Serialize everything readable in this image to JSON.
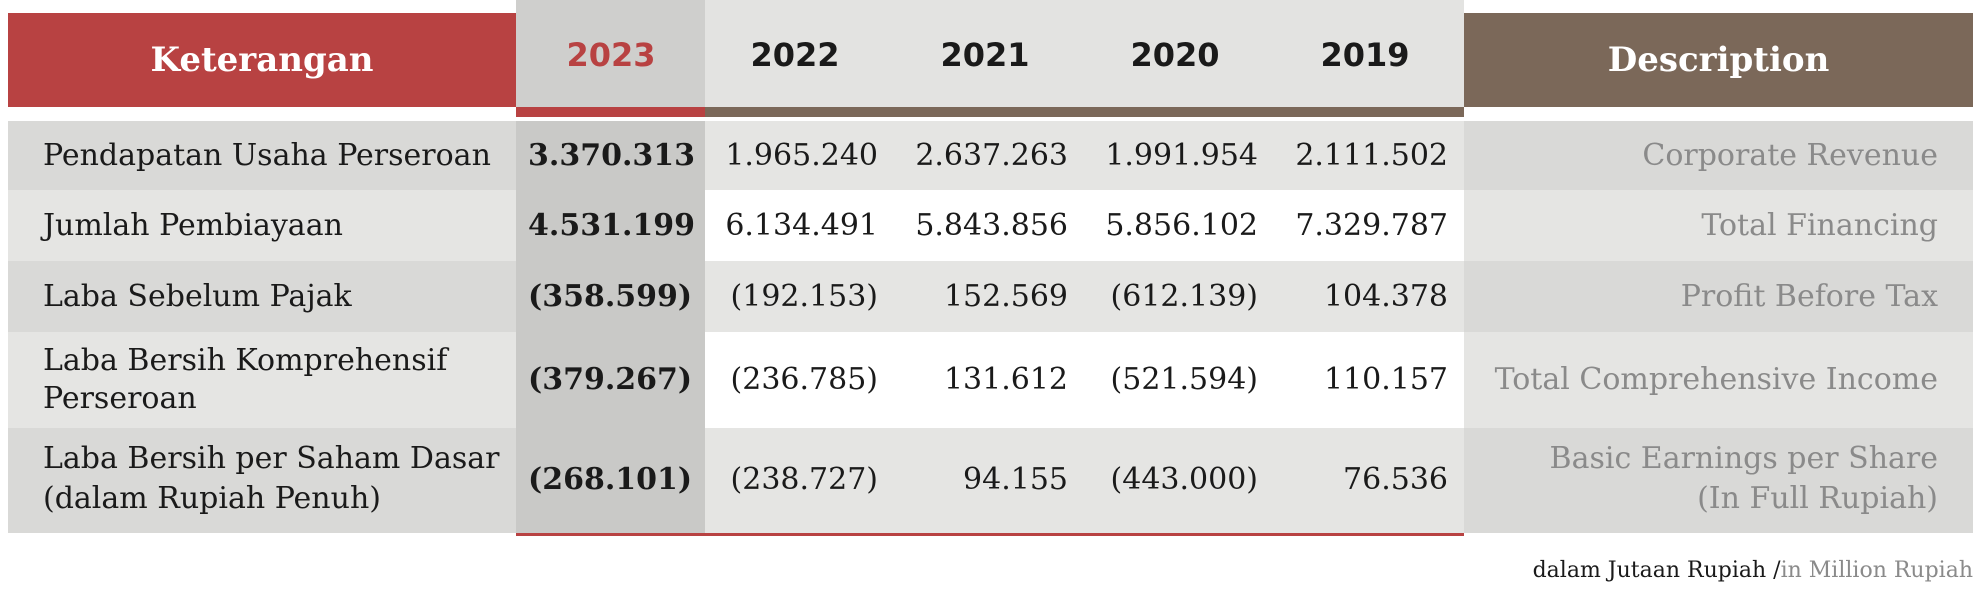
{
  "header": {
    "left_label": "Keterangan",
    "right_label": "Description",
    "years": [
      "2023",
      "2022",
      "2021",
      "2020",
      "2019"
    ]
  },
  "rows": [
    {
      "label_id": "Pendapatan Usaha Perseroan",
      "label_en": "Corporate Revenue",
      "values": [
        "3.370.313",
        "1.965.240",
        "2.637.263",
        "1.991.954",
        "2.111.502"
      ]
    },
    {
      "label_id": "Jumlah Pembiayaan",
      "label_en": "Total Financing",
      "values": [
        "4.531.199",
        "6.134.491",
        "5.843.856",
        "5.856.102",
        "7.329.787"
      ]
    },
    {
      "label_id": "Laba Sebelum Pajak",
      "label_en": "Profit Before Tax",
      "values": [
        "(358.599)",
        "(192.153)",
        "152.569",
        "(612.139)",
        "104.378"
      ]
    },
    {
      "label_id_1": "Laba Bersih Komprehensif",
      "label_id_2": "Perseroan",
      "label_en": "Total Comprehensive Income",
      "values": [
        "(379.267)",
        "(236.785)",
        "131.612",
        "(521.594)",
        "110.157"
      ]
    },
    {
      "label_id_1": "Laba Bersih per Saham Dasar",
      "label_id_2": "(dalam Rupiah Penuh)",
      "label_en_1": "Basic Earnings per Share",
      "label_en_2": "(In Full Rupiah)",
      "values": [
        "(268.101)",
        "(238.727)",
        "94.155",
        "(443.000)",
        "76.536"
      ]
    }
  ],
  "footer": {
    "unit_id": "dalam Jutaan Rupiah /",
    "unit_en": "in Million Rupiah"
  },
  "colors": {
    "accent_red": "#b84242",
    "accent_brown": "#7b6859"
  }
}
